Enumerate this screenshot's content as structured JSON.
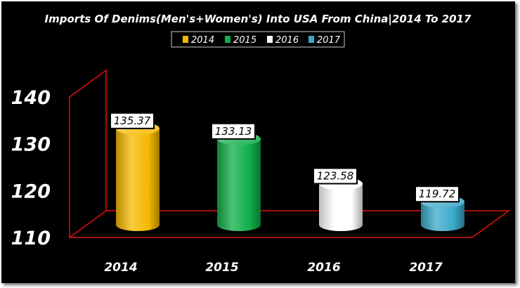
{
  "chart_data": {
    "type": "bar",
    "title": "Imports Of Denims(Men's+Women's) Into USA From China|2014 To 2017",
    "xlabel": "",
    "ylabel": "",
    "categories": [
      "2014",
      "2015",
      "2016",
      "2017"
    ],
    "values": [
      135.37,
      133.13,
      123.58,
      119.72
    ],
    "data_labels": [
      "135.37",
      "133.13",
      "123.58",
      "119.72"
    ],
    "ylim": [
      110,
      140
    ],
    "yticks": [
      "110",
      "120",
      "130",
      "140"
    ],
    "legend": {
      "placement": "top-center",
      "entries": [
        "2014",
        "2015",
        "2016",
        "2017"
      ]
    },
    "colors": [
      "#f5b800",
      "#0fae4a",
      "#ffffff",
      "#3aa9c8"
    ],
    "grid": false,
    "axis_color": "#e01010",
    "background": "#000000"
  }
}
